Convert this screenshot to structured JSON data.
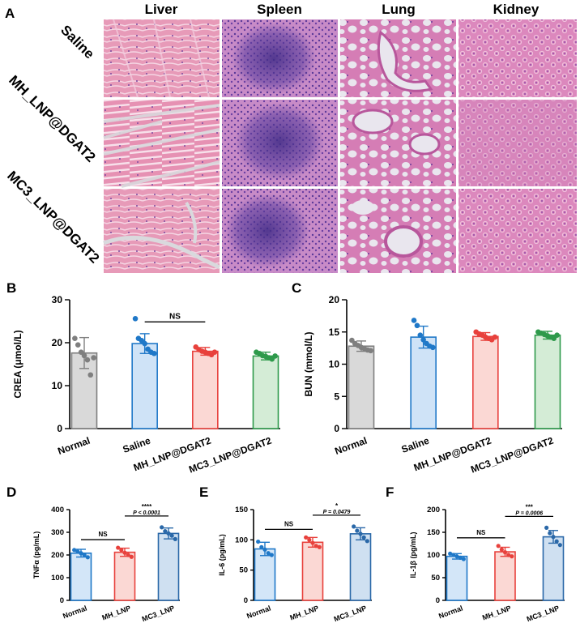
{
  "figure": {
    "panel_letters": [
      "A",
      "B",
      "C",
      "D",
      "E",
      "F"
    ],
    "histology": {
      "columns": [
        "Liver",
        "Spleen",
        "Lung",
        "Kidney"
      ],
      "rows": [
        "Saline",
        "MH_LNP@DGAT2",
        "MC3_LNP@DGAT2"
      ]
    }
  },
  "chart_data": [
    {
      "panel": "B",
      "type": "bar",
      "ylabel": "CREA (μmol/L)",
      "ylim": [
        0,
        30
      ],
      "yticks": [
        0,
        10,
        20,
        30
      ],
      "categories": [
        "Normal",
        "Saline",
        "MH_LNP@DGAT2",
        "MC3_LNP@DGAT2"
      ],
      "values": [
        17.6,
        19.8,
        18.0,
        16.9
      ],
      "errors": [
        3.6,
        2.3,
        0.9,
        0.9
      ],
      "points": [
        [
          21.0,
          19.5,
          17.8,
          17.0,
          16.0,
          12.5,
          16.5
        ],
        [
          25.6,
          21.0,
          20.5,
          19.8,
          18.5,
          17.8,
          17.5
        ],
        [
          19.0,
          18.4,
          18.0,
          17.8,
          17.5,
          17.2,
          17.8
        ],
        [
          17.8,
          17.5,
          17.0,
          16.8,
          16.5,
          16.2,
          16.9
        ]
      ],
      "colors": [
        "#7f7f7f",
        "#1f78c8",
        "#e8413c",
        "#2e9a4b"
      ],
      "fills": [
        "#d9d9d9",
        "#cfe3f7",
        "#fbd8d4",
        "#d4ecd6"
      ],
      "annotations": [
        {
          "text": "NS",
          "from": 1,
          "to": 2
        }
      ]
    },
    {
      "panel": "C",
      "type": "bar",
      "ylabel": "BUN (mmol/L)",
      "ylim": [
        0,
        20
      ],
      "yticks": [
        0,
        5,
        10,
        15,
        20
      ],
      "categories": [
        "Normal",
        "Saline",
        "MH_LNP@DGAT2",
        "MC3_LNP@DGAT2"
      ],
      "values": [
        12.8,
        14.2,
        14.3,
        14.5
      ],
      "errors": [
        0.8,
        1.7,
        0.6,
        0.6
      ],
      "points": [
        [
          13.7,
          13.2,
          12.9,
          12.6,
          12.4,
          12.2,
          12.1
        ],
        [
          16.8,
          16.0,
          14.5,
          13.8,
          13.2,
          12.8,
          12.6
        ],
        [
          15.0,
          14.7,
          14.5,
          14.2,
          14.0,
          13.8,
          14.2
        ],
        [
          15.0,
          14.8,
          14.6,
          14.4,
          14.2,
          14.0,
          14.5
        ]
      ],
      "colors": [
        "#7f7f7f",
        "#1f78c8",
        "#e8413c",
        "#2e9a4b"
      ],
      "fills": [
        "#d9d9d9",
        "#cfe3f7",
        "#fbd8d4",
        "#d4ecd6"
      ],
      "annotations": []
    },
    {
      "panel": "D",
      "type": "bar",
      "ylabel": "TNFα (pg/mL)",
      "ylim": [
        0,
        400
      ],
      "yticks": [
        0,
        100,
        200,
        300,
        400
      ],
      "categories": [
        "Normal",
        "MH_LNP",
        "MC3_LNP"
      ],
      "values": [
        208,
        212,
        295
      ],
      "errors": [
        17,
        18,
        24
      ],
      "points": [
        [
          222,
          215,
          208,
          200,
          190
        ],
        [
          232,
          222,
          210,
          200,
          192
        ],
        [
          322,
          305,
          295,
          285,
          270
        ]
      ],
      "colors": [
        "#1f78c8",
        "#e8413c",
        "#2a68a8"
      ],
      "fills": [
        "#d3e6f8",
        "#fbd8d4",
        "#cfe0f1"
      ],
      "annotations": [
        {
          "text": "NS",
          "from": 0,
          "to": 1
        },
        {
          "text": "****",
          "p": "P < 0.0001",
          "from": 1,
          "to": 2
        }
      ]
    },
    {
      "panel": "E",
      "type": "bar",
      "ylabel": "IL-6 (pg/mL)",
      "ylim": [
        0,
        150
      ],
      "yticks": [
        0,
        50,
        100,
        150
      ],
      "categories": [
        "Normal",
        "MH_LNP",
        "MC3_LNP"
      ],
      "values": [
        85,
        96,
        110
      ],
      "errors": [
        11,
        8,
        10
      ],
      "points": [
        [
          97,
          88,
          84,
          78,
          75
        ],
        [
          104,
          100,
          95,
          90,
          88
        ],
        [
          122,
          115,
          110,
          104,
          98
        ]
      ],
      "colors": [
        "#1f78c8",
        "#e8413c",
        "#2a68a8"
      ],
      "fills": [
        "#d3e6f8",
        "#fbd8d4",
        "#cfe0f1"
      ],
      "annotations": [
        {
          "text": "NS",
          "from": 0,
          "to": 1
        },
        {
          "text": "*",
          "p": "P = 0.0479",
          "from": 1,
          "to": 2
        }
      ]
    },
    {
      "panel": "F",
      "type": "bar",
      "ylabel": "IL-1β (pg/mL)",
      "ylim": [
        0,
        200
      ],
      "yticks": [
        0,
        50,
        100,
        150,
        200
      ],
      "categories": [
        "Normal",
        "MH_LNP",
        "MC3_LNP"
      ],
      "values": [
        97,
        107,
        140
      ],
      "errors": [
        6,
        10,
        14
      ],
      "points": [
        [
          103,
          100,
          97,
          94,
          91
        ],
        [
          120,
          112,
          106,
          100,
          97
        ],
        [
          160,
          148,
          140,
          130,
          122
        ]
      ],
      "colors": [
        "#1f78c8",
        "#e8413c",
        "#2a68a8"
      ],
      "fills": [
        "#d3e6f8",
        "#fbd8d4",
        "#cfe0f1"
      ],
      "annotations": [
        {
          "text": "NS",
          "from": 0,
          "to": 1
        },
        {
          "text": "***",
          "p": "P = 0.0006",
          "from": 1,
          "to": 2
        }
      ]
    }
  ]
}
